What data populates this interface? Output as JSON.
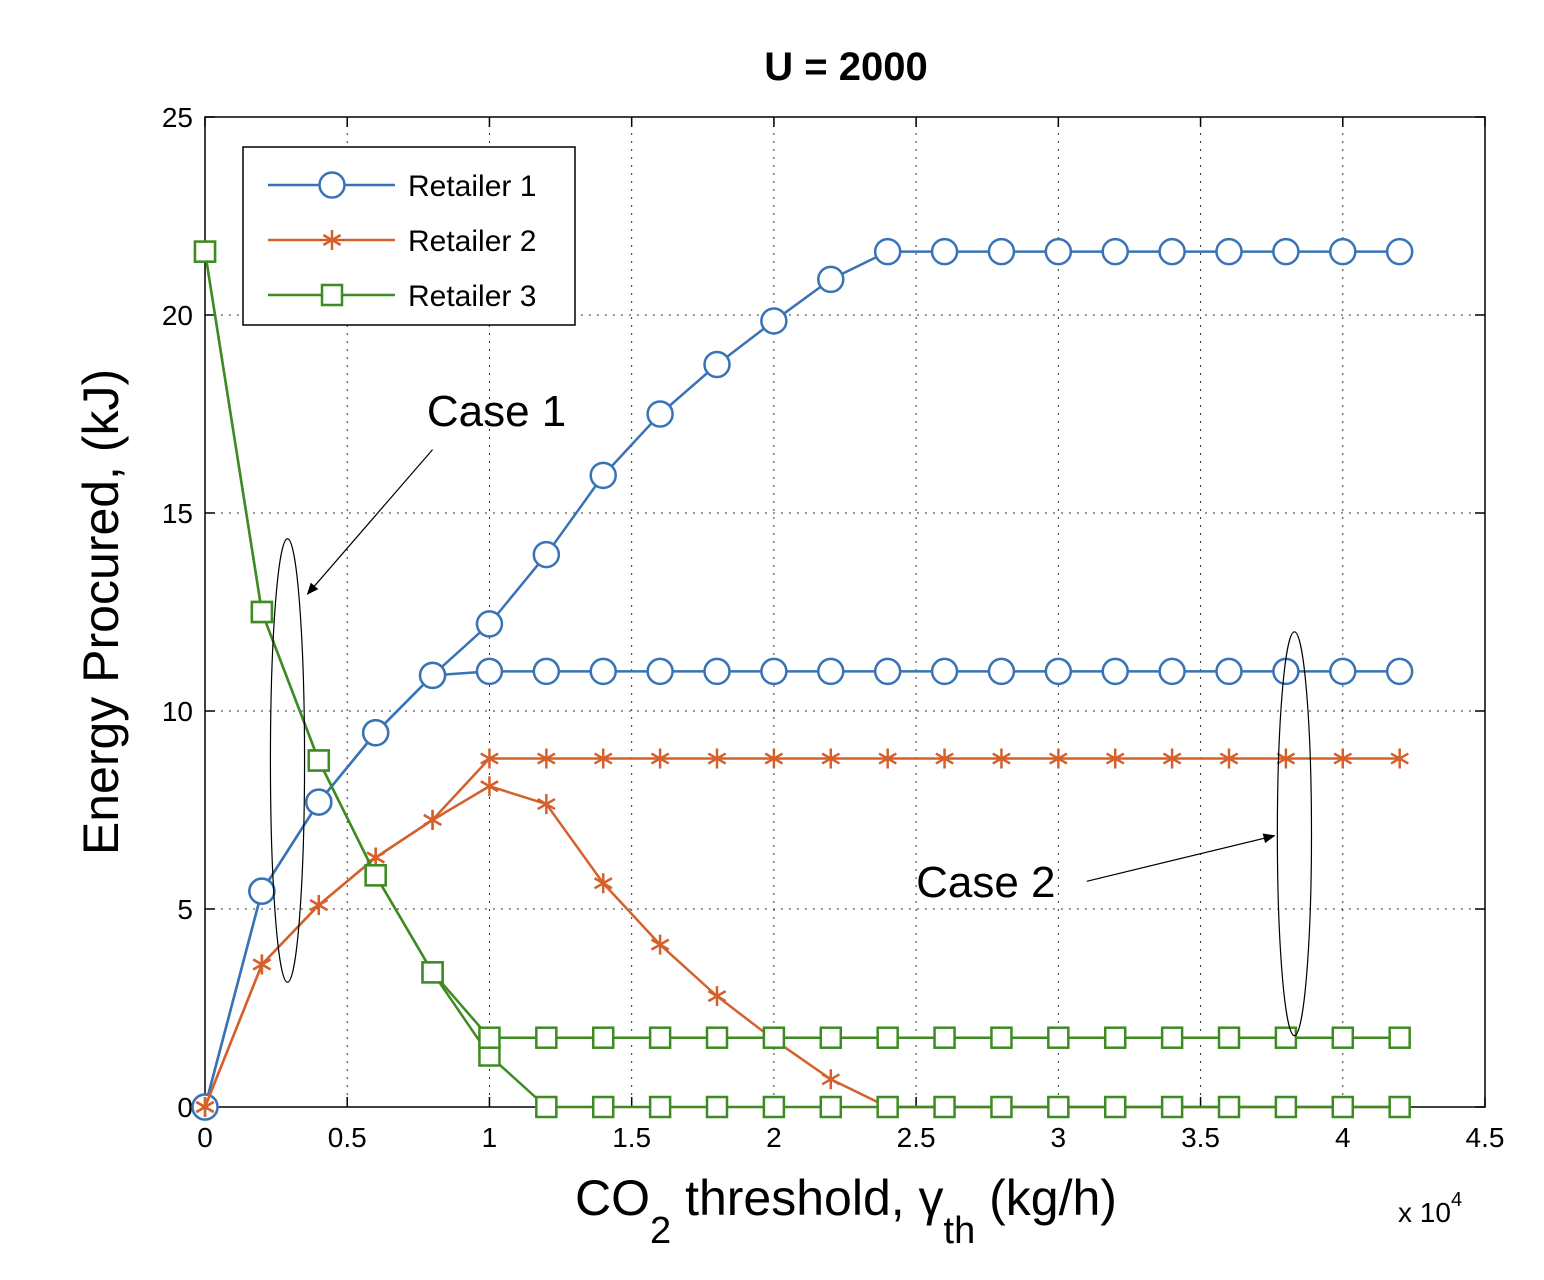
{
  "chart_data": {
    "type": "line",
    "title": "U = 2000",
    "xlabel": {
      "main": "CO",
      "sub": "2",
      "mid": " threshold, ",
      "greek": "γ",
      "greeksub": "th",
      "unit": " (kg/h)"
    },
    "ylabel": "Energy Procured, (kJ)",
    "x_multiplier": {
      "base": "x 10",
      "exp": "4"
    },
    "xlim": [
      0,
      4.5
    ],
    "ylim": [
      0,
      25
    ],
    "xticks": [
      "0",
      "0.5",
      "1",
      "1.5",
      "2",
      "2.5",
      "3",
      "3.5",
      "4",
      "4.5"
    ],
    "xtick_values": [
      0,
      0.5,
      1,
      1.5,
      2,
      2.5,
      3,
      3.5,
      4,
      4.5
    ],
    "yticks": [
      "0",
      "5",
      "10",
      "15",
      "20",
      "25"
    ],
    "ytick_values": [
      0,
      5,
      10,
      15,
      20,
      25
    ],
    "grid": true,
    "legend_position": "top-left",
    "legend": [
      {
        "label": "Retailer 1",
        "color": "#3873B5",
        "marker": "circle"
      },
      {
        "label": "Retailer 2",
        "color": "#D4602C",
        "marker": "asterisk"
      },
      {
        "label": "Retailer 3",
        "color": "#3E8B23",
        "marker": "square"
      }
    ],
    "x": [
      0,
      0.2,
      0.4,
      0.6,
      0.8,
      1.0,
      1.2,
      1.4,
      1.6,
      1.8,
      2.0,
      2.2,
      2.4,
      2.6,
      2.8,
      3.0,
      3.2,
      3.4,
      3.6,
      3.8,
      4.0,
      4.2
    ],
    "series": [
      {
        "legend_index": 0,
        "case": "1",
        "values": [
          0,
          5.45,
          7.7,
          9.45,
          10.9,
          12.2,
          13.95,
          15.95,
          17.5,
          18.75,
          19.85,
          20.9,
          21.6,
          21.6,
          21.6,
          21.6,
          21.6,
          21.6,
          21.6,
          21.6,
          21.6,
          21.6
        ]
      },
      {
        "legend_index": 0,
        "case": "2",
        "values": [
          0,
          5.45,
          7.7,
          9.45,
          10.9,
          11.0,
          11.0,
          11.0,
          11.0,
          11.0,
          11.0,
          11.0,
          11.0,
          11.0,
          11.0,
          11.0,
          11.0,
          11.0,
          11.0,
          11.0,
          11.0,
          11.0
        ]
      },
      {
        "legend_index": 1,
        "case": "1",
        "values": [
          0,
          3.6,
          5.1,
          6.3,
          7.25,
          8.1,
          7.65,
          5.65,
          4.1,
          2.8,
          1.7,
          0.7,
          0,
          0,
          0,
          0,
          0,
          0,
          0,
          0,
          0,
          0
        ]
      },
      {
        "legend_index": 1,
        "case": "2",
        "values": [
          0,
          3.6,
          5.1,
          6.3,
          7.25,
          8.8,
          8.8,
          8.8,
          8.8,
          8.8,
          8.8,
          8.8,
          8.8,
          8.8,
          8.8,
          8.8,
          8.8,
          8.8,
          8.8,
          8.8,
          8.8,
          8.8
        ]
      },
      {
        "legend_index": 2,
        "case": "1",
        "values": [
          21.6,
          12.5,
          8.75,
          5.85,
          3.4,
          1.3,
          0,
          0,
          0,
          0,
          0,
          0,
          0,
          0,
          0,
          0,
          0,
          0,
          0,
          0,
          0,
          0
        ]
      },
      {
        "legend_index": 2,
        "case": "2",
        "values": [
          21.6,
          12.5,
          8.75,
          5.85,
          3.4,
          1.75,
          1.75,
          1.75,
          1.75,
          1.75,
          1.75,
          1.75,
          1.75,
          1.75,
          1.75,
          1.75,
          1.75,
          1.75,
          1.75,
          1.75,
          1.75,
          1.75
        ]
      }
    ],
    "annotations": [
      {
        "text": "Case 1",
        "text_x": 0.78,
        "text_y": 17.2,
        "arrow_from": [
          0.8,
          16.6
        ],
        "arrow_to": [
          0.36,
          12.95
        ],
        "ellipse_center": [
          0.29,
          8.75
        ],
        "ellipse_radii": [
          0.06,
          5.6
        ]
      },
      {
        "text": "Case 2",
        "text_x": 2.5,
        "text_y": 5.3,
        "arrow_from": [
          3.1,
          5.7
        ],
        "arrow_to": [
          3.76,
          6.85
        ],
        "ellipse_center": [
          3.83,
          6.9
        ],
        "ellipse_radii": [
          0.06,
          5.1
        ]
      }
    ]
  }
}
